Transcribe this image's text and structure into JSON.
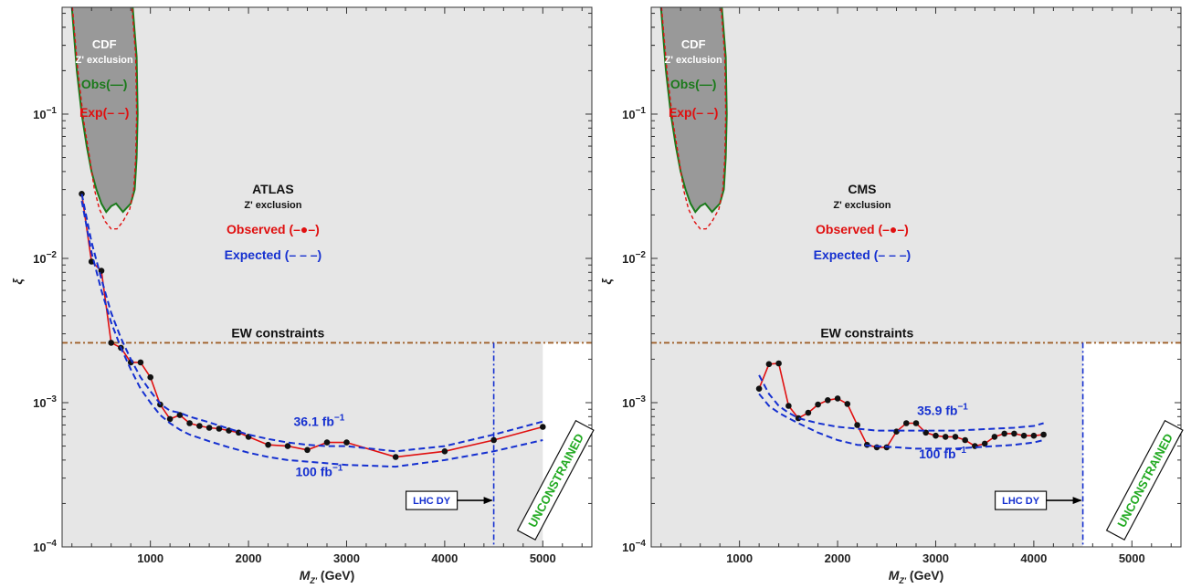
{
  "chart_data": [
    {
      "type": "line",
      "x_scale": "linear",
      "y_scale": "log",
      "xlim": [
        100,
        5500
      ],
      "ylim": [
        0.0001,
        0.55
      ],
      "x_ticks": [
        1000,
        2000,
        3000,
        4000,
        5000
      ],
      "x_tick_labels": [
        "1000",
        "2000",
        "3000",
        "4000",
        "5000"
      ],
      "y_ticks": [
        0.0001,
        0.001,
        0.01,
        0.1
      ],
      "y_tick_mantissa": "10",
      "y_tick_exponents": [
        "−4",
        "−3",
        "−2",
        "−1"
      ],
      "xlabel": {
        "main": "M",
        "sub": "Z'",
        "unit": " (GeV)"
      },
      "ylabel": "ξ",
      "experiment_label": "ATLAS",
      "exclusion_label": "Z' exclusion",
      "observed_label": "Observed (–●–)",
      "expected_label": "Expected (– – –)",
      "cdf": {
        "title": "CDF",
        "subtitle": "Z' exclusion",
        "obs_label": "Obs(—)",
        "exp_label": "Exp(– –)",
        "obs_left": [
          [
            200,
            0.55
          ],
          [
            250,
            0.2
          ],
          [
            300,
            0.1
          ],
          [
            350,
            0.06
          ],
          [
            400,
            0.04
          ],
          [
            450,
            0.03
          ],
          [
            500,
            0.024
          ],
          [
            550,
            0.021
          ]
        ],
        "obs_right": [
          [
            820,
            0.55
          ],
          [
            860,
            0.25
          ],
          [
            870,
            0.1
          ],
          [
            860,
            0.05
          ],
          [
            840,
            0.03
          ],
          [
            800,
            0.024
          ],
          [
            720,
            0.021
          ],
          [
            650,
            0.024
          ],
          [
            600,
            0.023
          ]
        ],
        "exp_left": [
          [
            205,
            0.55
          ],
          [
            260,
            0.2
          ],
          [
            320,
            0.09
          ],
          [
            380,
            0.05
          ],
          [
            430,
            0.03
          ],
          [
            480,
            0.022
          ],
          [
            540,
            0.018
          ],
          [
            600,
            0.016
          ]
        ],
        "exp_right": [
          [
            812,
            0.55
          ],
          [
            850,
            0.25
          ],
          [
            860,
            0.1
          ],
          [
            850,
            0.05
          ],
          [
            830,
            0.03
          ],
          [
            790,
            0.022
          ],
          [
            720,
            0.018
          ],
          [
            660,
            0.016
          ]
        ]
      },
      "ew_constraint": {
        "label": "EW constraints",
        "value": 0.0026
      },
      "lhc_dy": {
        "label": "LHC DY",
        "x": 4500
      },
      "unconstrained_label": "UNCONSTRAINED",
      "shade_max_x": 5000,
      "lumi_high_label": {
        "value": "36.1 fb",
        "exp": "−1"
      },
      "lumi_low_label": {
        "value": "100 fb",
        "exp": "−1"
      },
      "series": [
        {
          "name": "Observed",
          "style": "solid-dots",
          "color": "#e01010",
          "points": [
            [
              300,
              0.028
            ],
            [
              400,
              0.0095
            ],
            [
              500,
              0.0082
            ],
            [
              600,
              0.0026
            ],
            [
              700,
              0.0024
            ],
            [
              800,
              0.0019
            ],
            [
              900,
              0.0019
            ],
            [
              1000,
              0.0015
            ],
            [
              1100,
              0.00097
            ],
            [
              1200,
              0.00077
            ],
            [
              1300,
              0.00082
            ],
            [
              1400,
              0.00072
            ],
            [
              1500,
              0.00069
            ],
            [
              1600,
              0.00067
            ],
            [
              1700,
              0.00066
            ],
            [
              1800,
              0.00064
            ],
            [
              1900,
              0.00062
            ],
            [
              2000,
              0.00058
            ],
            [
              2200,
              0.00051
            ],
            [
              2400,
              0.0005
            ],
            [
              2600,
              0.00047
            ],
            [
              2800,
              0.00053
            ],
            [
              3000,
              0.00053
            ],
            [
              3500,
              0.00042
            ],
            [
              4000,
              0.00046
            ],
            [
              4500,
              0.00055
            ],
            [
              5000,
              0.00068
            ]
          ]
        },
        {
          "name": "Expected 36.1 fb^-1",
          "style": "dashed",
          "color": "#1530d0",
          "points": [
            [
              300,
              0.028
            ],
            [
              400,
              0.013
            ],
            [
              500,
              0.0072
            ],
            [
              600,
              0.0042
            ],
            [
              700,
              0.0028
            ],
            [
              800,
              0.002
            ],
            [
              900,
              0.0015
            ],
            [
              1000,
              0.0012
            ],
            [
              1100,
              0.00098
            ],
            [
              1200,
              0.00088
            ],
            [
              1300,
              0.00085
            ],
            [
              1400,
              0.0008
            ],
            [
              1600,
              0.00073
            ],
            [
              1800,
              0.00066
            ],
            [
              2000,
              0.0006
            ],
            [
              2200,
              0.00056
            ],
            [
              2400,
              0.00053
            ],
            [
              2600,
              0.00051
            ],
            [
              2800,
              0.0005
            ],
            [
              3000,
              0.0005
            ],
            [
              3500,
              0.00046
            ],
            [
              4000,
              0.0005
            ],
            [
              4500,
              0.0006
            ],
            [
              5000,
              0.00074
            ]
          ]
        },
        {
          "name": "Expected 100 fb^-1",
          "style": "dashed",
          "color": "#1530d0",
          "points": [
            [
              300,
              0.025
            ],
            [
              400,
              0.011
            ],
            [
              500,
              0.006
            ],
            [
              600,
              0.0036
            ],
            [
              700,
              0.0024
            ],
            [
              800,
              0.0017
            ],
            [
              900,
              0.00125
            ],
            [
              1000,
              0.001
            ],
            [
              1100,
              0.00082
            ],
            [
              1200,
              0.00072
            ],
            [
              1300,
              0.00065
            ],
            [
              1400,
              0.0006
            ],
            [
              1600,
              0.00054
            ],
            [
              1800,
              0.00049
            ],
            [
              2000,
              0.00045
            ],
            [
              2200,
              0.00042
            ],
            [
              2400,
              0.0004
            ],
            [
              2600,
              0.00039
            ],
            [
              2800,
              0.00038
            ],
            [
              3000,
              0.00037
            ],
            [
              3500,
              0.00036
            ],
            [
              4000,
              0.0004
            ],
            [
              4500,
              0.00046
            ],
            [
              5000,
              0.00055
            ]
          ]
        }
      ]
    },
    {
      "type": "line",
      "x_scale": "linear",
      "y_scale": "log",
      "xlim": [
        100,
        5500
      ],
      "ylim": [
        0.0001,
        0.55
      ],
      "x_ticks": [
        1000,
        2000,
        3000,
        4000,
        5000
      ],
      "x_tick_labels": [
        "1000",
        "2000",
        "3000",
        "4000",
        "5000"
      ],
      "y_ticks": [
        0.0001,
        0.001,
        0.01,
        0.1
      ],
      "y_tick_mantissa": "10",
      "y_tick_exponents": [
        "−4",
        "−3",
        "−2",
        "−1"
      ],
      "xlabel": {
        "main": "M",
        "sub": "Z'",
        "unit": " (GeV)"
      },
      "ylabel": "ξ",
      "experiment_label": "CMS",
      "exclusion_label": "Z' exclusion",
      "observed_label": "Observed (–●–)",
      "expected_label": "Expected (– – –)",
      "cdf": {
        "title": "CDF",
        "subtitle": "Z' exclusion",
        "obs_label": "Obs(—)",
        "exp_label": "Exp(– –)",
        "obs_left": [
          [
            200,
            0.55
          ],
          [
            250,
            0.2
          ],
          [
            300,
            0.1
          ],
          [
            350,
            0.06
          ],
          [
            400,
            0.04
          ],
          [
            450,
            0.03
          ],
          [
            500,
            0.024
          ],
          [
            550,
            0.021
          ]
        ],
        "obs_right": [
          [
            820,
            0.55
          ],
          [
            860,
            0.25
          ],
          [
            870,
            0.1
          ],
          [
            860,
            0.05
          ],
          [
            840,
            0.03
          ],
          [
            800,
            0.024
          ],
          [
            720,
            0.021
          ],
          [
            650,
            0.024
          ],
          [
            600,
            0.023
          ]
        ],
        "exp_left": [
          [
            205,
            0.55
          ],
          [
            260,
            0.2
          ],
          [
            320,
            0.09
          ],
          [
            380,
            0.05
          ],
          [
            430,
            0.03
          ],
          [
            480,
            0.022
          ],
          [
            540,
            0.018
          ],
          [
            600,
            0.016
          ]
        ],
        "exp_right": [
          [
            812,
            0.55
          ],
          [
            850,
            0.25
          ],
          [
            860,
            0.1
          ],
          [
            850,
            0.05
          ],
          [
            830,
            0.03
          ],
          [
            790,
            0.022
          ],
          [
            720,
            0.018
          ],
          [
            660,
            0.016
          ]
        ]
      },
      "ew_constraint": {
        "label": "EW constraints",
        "value": 0.0026
      },
      "lhc_dy": {
        "label": "LHC DY",
        "x": 4500
      },
      "unconstrained_label": "UNCONSTRAINED",
      "shade_max_x": 4500,
      "lumi_high_label": {
        "value": "35.9 fb",
        "exp": "−1"
      },
      "lumi_low_label": {
        "value": "100 fb",
        "exp": "−1"
      },
      "series": [
        {
          "name": "Observed",
          "style": "solid-dots",
          "color": "#e01010",
          "points": [
            [
              1200,
              0.00125
            ],
            [
              1300,
              0.00185
            ],
            [
              1400,
              0.00187
            ],
            [
              1500,
              0.00095
            ],
            [
              1600,
              0.00078
            ],
            [
              1700,
              0.00085
            ],
            [
              1800,
              0.00097
            ],
            [
              1900,
              0.00104
            ],
            [
              2000,
              0.00107
            ],
            [
              2100,
              0.00098
            ],
            [
              2200,
              0.0007
            ],
            [
              2300,
              0.00051
            ],
            [
              2400,
              0.00049
            ],
            [
              2500,
              0.00049
            ],
            [
              2600,
              0.00063
            ],
            [
              2700,
              0.00072
            ],
            [
              2800,
              0.00072
            ],
            [
              2900,
              0.00062
            ],
            [
              3000,
              0.00059
            ],
            [
              3100,
              0.00058
            ],
            [
              3200,
              0.00058
            ],
            [
              3300,
              0.00055
            ],
            [
              3400,
              0.0005
            ],
            [
              3500,
              0.00052
            ],
            [
              3600,
              0.00058
            ],
            [
              3700,
              0.00061
            ],
            [
              3800,
              0.00061
            ],
            [
              3900,
              0.00059
            ],
            [
              4000,
              0.00059
            ],
            [
              4100,
              0.0006
            ]
          ]
        },
        {
          "name": "Expected 35.9 fb^-1",
          "style": "dashed",
          "color": "#1530d0",
          "points": [
            [
              1200,
              0.00155
            ],
            [
              1300,
              0.00115
            ],
            [
              1400,
              0.00095
            ],
            [
              1500,
              0.00085
            ],
            [
              1600,
              0.00078
            ],
            [
              1800,
              0.00072
            ],
            [
              2000,
              0.00068
            ],
            [
              2200,
              0.00066
            ],
            [
              2400,
              0.00064
            ],
            [
              2600,
              0.00064
            ],
            [
              2800,
              0.00064
            ],
            [
              3000,
              0.00064
            ],
            [
              3200,
              0.00064
            ],
            [
              3400,
              0.00065
            ],
            [
              3600,
              0.00066
            ],
            [
              3800,
              0.00067
            ],
            [
              4000,
              0.00069
            ],
            [
              4100,
              0.00072
            ]
          ]
        },
        {
          "name": "Expected 100 fb^-1",
          "style": "dashed",
          "color": "#1530d0",
          "points": [
            [
              1200,
              0.00115
            ],
            [
              1300,
              0.00095
            ],
            [
              1400,
              0.00085
            ],
            [
              1500,
              0.00078
            ],
            [
              1600,
              0.00072
            ],
            [
              1800,
              0.00062
            ],
            [
              2000,
              0.00055
            ],
            [
              2200,
              0.00051
            ],
            [
              2400,
              0.0005
            ],
            [
              2600,
              0.00049
            ],
            [
              2800,
              0.00048
            ],
            [
              3000,
              0.00048
            ],
            [
              3200,
              0.00048
            ],
            [
              3400,
              0.00049
            ],
            [
              3600,
              0.0005
            ],
            [
              3800,
              0.00051
            ],
            [
              4000,
              0.00053
            ],
            [
              4100,
              0.00055
            ]
          ]
        }
      ]
    }
  ]
}
